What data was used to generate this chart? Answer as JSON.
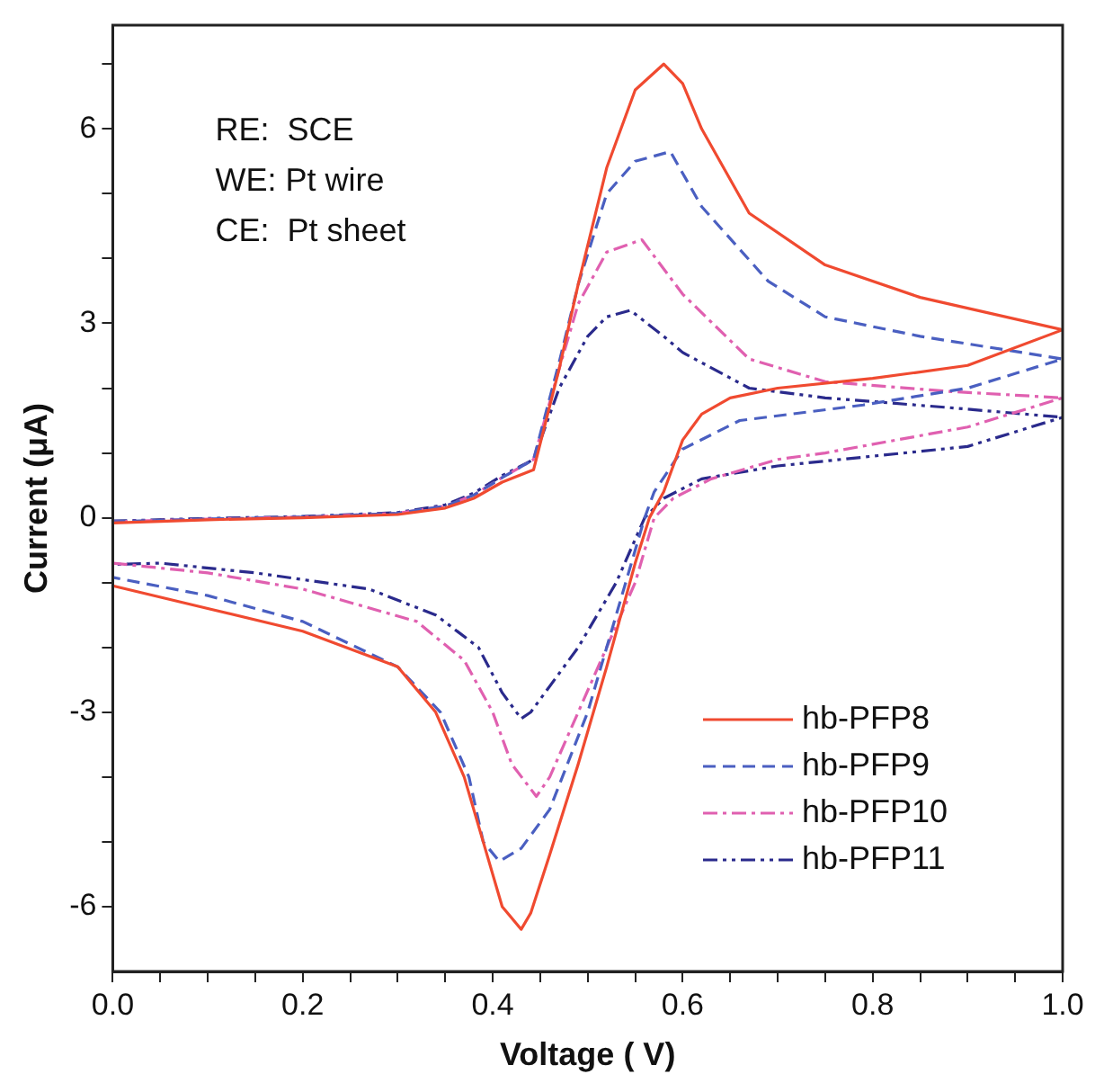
{
  "chart_data": {
    "type": "line",
    "xlabel": "Voltage ( V)",
    "ylabel": "Current (μA)",
    "xlim": [
      0,
      1
    ],
    "ylim": [
      -7,
      7.6
    ],
    "xticks": [
      {
        "value": 0,
        "label": "0.0"
      },
      {
        "value": 0.05,
        "label": null
      },
      {
        "value": 0.1,
        "label": null
      },
      {
        "value": 0.15,
        "label": null
      },
      {
        "value": 0.2,
        "label": "0.2"
      },
      {
        "value": 0.25,
        "label": null
      },
      {
        "value": 0.3,
        "label": null
      },
      {
        "value": 0.35,
        "label": null
      },
      {
        "value": 0.4,
        "label": "0.4"
      },
      {
        "value": 0.45,
        "label": null
      },
      {
        "value": 0.5,
        "label": null
      },
      {
        "value": 0.55,
        "label": null
      },
      {
        "value": 0.6,
        "label": "0.6"
      },
      {
        "value": 0.65,
        "label": null
      },
      {
        "value": 0.7,
        "label": null
      },
      {
        "value": 0.75,
        "label": null
      },
      {
        "value": 0.8,
        "label": "0.8"
      },
      {
        "value": 0.85,
        "label": null
      },
      {
        "value": 0.9,
        "label": null
      },
      {
        "value": 0.95,
        "label": null
      },
      {
        "value": 1,
        "label": "1.0"
      }
    ],
    "yticks": [
      -6,
      {
        "value": -5,
        "label": null
      },
      {
        "value": -4,
        "label": null
      },
      -3,
      {
        "value": -2,
        "label": null
      },
      {
        "value": -1,
        "label": null
      },
      0,
      {
        "value": 1,
        "label": null
      },
      {
        "value": 2,
        "label": null
      },
      3,
      {
        "value": 4,
        "label": null
      },
      {
        "value": 5,
        "label": null
      },
      6,
      {
        "value": 7,
        "label": null
      }
    ],
    "grid": false,
    "legend": "bottom right",
    "marker": "none",
    "annotations": [
      "RE:  SCE",
      "WE: Pt wire",
      "CE:  Pt sheet"
    ],
    "series": [
      {
        "name": "hb-PFP8",
        "color": "#f04a30",
        "line_style": "solid",
        "x": [
          0,
          0.1,
          0.2,
          0.3,
          0.35,
          0.38,
          0.41,
          0.443,
          0.47,
          0.49,
          0.52,
          0.55,
          0.58,
          0.6,
          0.62,
          0.67,
          0.75,
          0.85,
          1,
          0.9,
          0.8,
          0.7,
          0.65,
          0.62,
          0.6,
          0.58,
          0.565,
          0.55,
          0.52,
          0.49,
          0.46,
          0.44,
          0.43,
          0.41,
          0.39,
          0.37,
          0.34,
          0.3,
          0.2,
          0.1,
          0
        ],
        "values": [
          -0.08,
          -0.03,
          0,
          0.05,
          0.15,
          0.3,
          0.55,
          0.74,
          2.3,
          3.6,
          5.4,
          6.6,
          7.0,
          6.7,
          6.0,
          4.7,
          3.9,
          3.4,
          2.9,
          2.35,
          2.15,
          2.0,
          1.85,
          1.6,
          1.2,
          0.4,
          0,
          -0.7,
          -2.3,
          -3.8,
          -5.2,
          -6.1,
          -6.35,
          -6.0,
          -5.0,
          -4.0,
          -3.0,
          -2.3,
          -1.75,
          -1.4,
          -1.05
        ]
      },
      {
        "name": "hb-PFP9",
        "color": "#4a5fc1",
        "line_style": "dashed",
        "x": [
          0,
          0.1,
          0.2,
          0.3,
          0.35,
          0.38,
          0.41,
          0.443,
          0.47,
          0.49,
          0.52,
          0.55,
          0.587,
          0.62,
          0.69,
          0.75,
          0.85,
          1,
          0.9,
          0.79,
          0.66,
          0.6,
          0.57,
          0.56,
          0.53,
          0.5,
          0.46,
          0.43,
          0.407,
          0.39,
          0.375,
          0.345,
          0.3,
          0.2,
          0.1,
          0
        ],
        "values": [
          -0.06,
          -0.02,
          0.01,
          0.07,
          0.18,
          0.35,
          0.62,
          0.9,
          2.4,
          3.6,
          5.0,
          5.5,
          5.65,
          4.8,
          3.65,
          3.1,
          2.8,
          2.45,
          2.0,
          1.74,
          1.5,
          1.06,
          0.4,
          0,
          -1.5,
          -3.0,
          -4.5,
          -5.1,
          -5.3,
          -5.0,
          -4.0,
          -3.0,
          -2.3,
          -1.6,
          -1.2,
          -0.92
        ]
      },
      {
        "name": "hb-PFP10",
        "color": "#e060b0",
        "line_style": "dashdot",
        "x": [
          0,
          0.1,
          0.2,
          0.3,
          0.35,
          0.38,
          0.41,
          0.443,
          0.47,
          0.49,
          0.52,
          0.557,
          0.6,
          0.67,
          0.75,
          0.88,
          1,
          0.9,
          0.75,
          0.7,
          0.63,
          0.59,
          0.57,
          0.55,
          0.52,
          0.49,
          0.46,
          0.446,
          0.42,
          0.4,
          0.37,
          0.32,
          0.2,
          0.1,
          0
        ],
        "values": [
          -0.06,
          -0.02,
          0.01,
          0.07,
          0.18,
          0.35,
          0.62,
          0.9,
          2.3,
          3.3,
          4.1,
          4.29,
          3.45,
          2.45,
          2.1,
          1.95,
          1.85,
          1.4,
          1.0,
          0.9,
          0.6,
          0.3,
          0,
          -1.0,
          -2.0,
          -3.0,
          -4.0,
          -4.3,
          -3.8,
          -3.0,
          -2.2,
          -1.6,
          -1.1,
          -0.85,
          -0.7
        ]
      },
      {
        "name": "hb-PFP11",
        "color": "#2a2a8c",
        "line_style": "dashdotdot",
        "x": [
          0,
          0.1,
          0.2,
          0.3,
          0.35,
          0.38,
          0.41,
          0.443,
          0.47,
          0.5,
          0.52,
          0.545,
          0.58,
          0.6,
          0.67,
          0.75,
          0.88,
          1,
          0.9,
          0.8,
          0.7,
          0.62,
          0.58,
          0.56,
          0.53,
          0.49,
          0.44,
          0.43,
          0.41,
          0.385,
          0.34,
          0.27,
          0.15,
          0.05,
          0
        ],
        "values": [
          -0.05,
          -0.01,
          0.02,
          0.08,
          0.2,
          0.38,
          0.65,
          0.9,
          2.0,
          2.8,
          3.1,
          3.2,
          2.8,
          2.55,
          2.0,
          1.85,
          1.7,
          1.55,
          1.1,
          0.95,
          0.8,
          0.6,
          0.3,
          0,
          -1.0,
          -2.0,
          -3.0,
          -3.1,
          -2.7,
          -2.0,
          -1.5,
          -1.1,
          -0.85,
          -0.7,
          -0.72
        ]
      }
    ]
  }
}
